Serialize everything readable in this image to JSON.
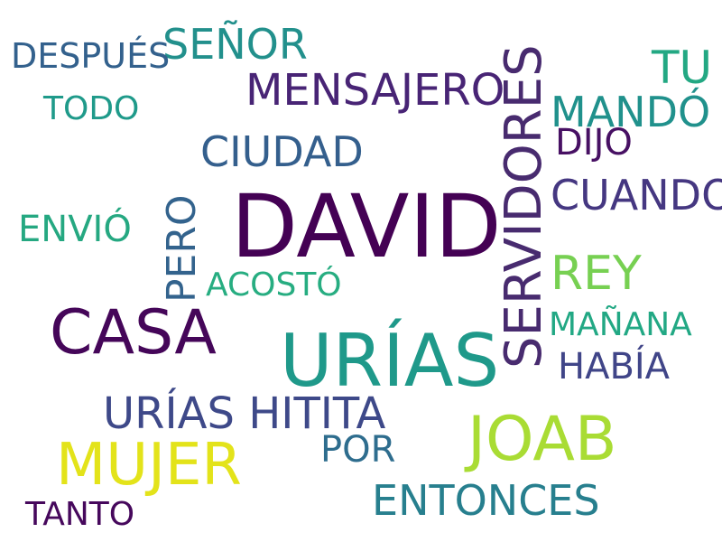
{
  "word_cloud": {
    "words": [
      {
        "text": "DAVID",
        "color": "#440154"
      },
      {
        "text": "URÍAS",
        "color": "#1f998a"
      },
      {
        "text": "SERVIDORES",
        "color": "#482b6f"
      },
      {
        "text": "CASA",
        "color": "#450659"
      },
      {
        "text": "JOAB",
        "color": "#a9dc34"
      },
      {
        "text": "MUJER",
        "color": "#e3e31a"
      },
      {
        "text": "MENSAJERO",
        "color": "#482475"
      },
      {
        "text": "SEÑOR",
        "color": "#22908c"
      },
      {
        "text": "CIUDAD",
        "color": "#345f8d"
      },
      {
        "text": "CUANDO",
        "color": "#453781"
      },
      {
        "text": "REY",
        "color": "#77d052"
      },
      {
        "text": "MANDÓ",
        "color": "#20918c"
      },
      {
        "text": "DIJO",
        "color": "#471063"
      },
      {
        "text": "TU",
        "color": "#23a883"
      },
      {
        "text": "DESPUÉS",
        "color": "#33618d"
      },
      {
        "text": "TODO",
        "color": "#1f9a8a"
      },
      {
        "text": "ENVIÓ",
        "color": "#25a881"
      },
      {
        "text": "PERO",
        "color": "#33638d"
      },
      {
        "text": "ACOSTÓ",
        "color": "#27ad81"
      },
      {
        "text": "MAÑANA",
        "color": "#22a884"
      },
      {
        "text": "HABÍA",
        "color": "#404588"
      },
      {
        "text": "URÍAS HITITA",
        "color": "#3e4989"
      },
      {
        "text": "POR",
        "color": "#2e6d8e"
      },
      {
        "text": "ENTONCES",
        "color": "#277f8e"
      },
      {
        "text": "TANTO",
        "color": "#46085c"
      }
    ]
  }
}
